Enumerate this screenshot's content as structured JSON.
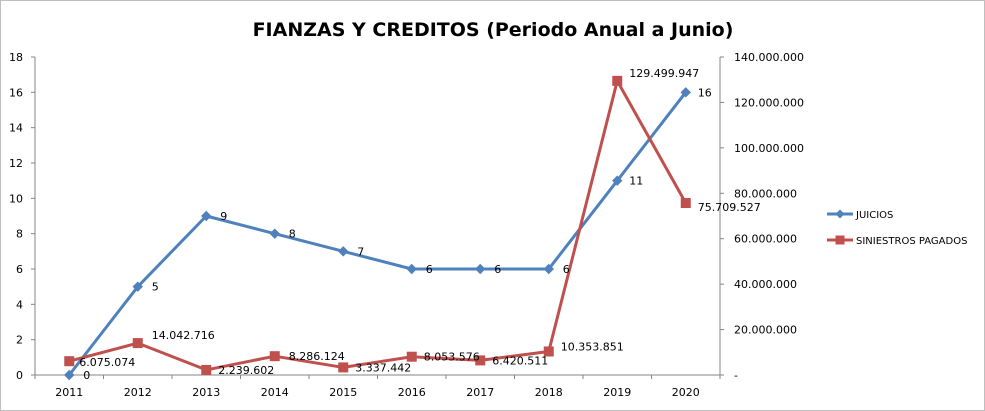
{
  "chart_data": {
    "type": "line",
    "title": "FIANZAS Y CREDITOS (Periodo Anual a Junio)",
    "categories": [
      "2011",
      "2012",
      "2013",
      "2014",
      "2015",
      "2016",
      "2017",
      "2018",
      "2019",
      "2020"
    ],
    "y_left": {
      "min": 0,
      "max": 18,
      "step": 2,
      "ticks": [
        "0",
        "2",
        "4",
        "6",
        "8",
        "10",
        "12",
        "14",
        "16",
        "18"
      ]
    },
    "y_right": {
      "min": 0,
      "max": 140000000,
      "step": 20000000,
      "ticks": [
        "-",
        "20.000.000",
        "40.000.000",
        "60.000.000",
        "80.000.000",
        "100.000.000",
        "120.000.000",
        "140.000.000"
      ]
    },
    "grid": false,
    "legend_position": "right",
    "series": [
      {
        "name": "JUICIOS",
        "axis": "left",
        "color": "#4f81bd",
        "marker": "diamond",
        "values": [
          0,
          5,
          9,
          8,
          7,
          6,
          6,
          6,
          11,
          16
        ],
        "labels": [
          "0",
          "5",
          "9",
          "8",
          "7",
          "6",
          "6",
          "6",
          "11",
          "16"
        ]
      },
      {
        "name": "SINIESTROS PAGADOS",
        "axis": "right",
        "color": "#c0504d",
        "marker": "square",
        "values": [
          6075074,
          14042716,
          2239602,
          8286124,
          3337442,
          8053576,
          6420511,
          10353851,
          129499947,
          75709527
        ],
        "labels": [
          "6.075.074",
          "14.042.716",
          "2.239.602",
          "8.286.124",
          "3.337.442",
          "8.053.576",
          "6.420.511",
          "10.353.851",
          "129.499.947",
          "75.709.527"
        ]
      }
    ]
  }
}
